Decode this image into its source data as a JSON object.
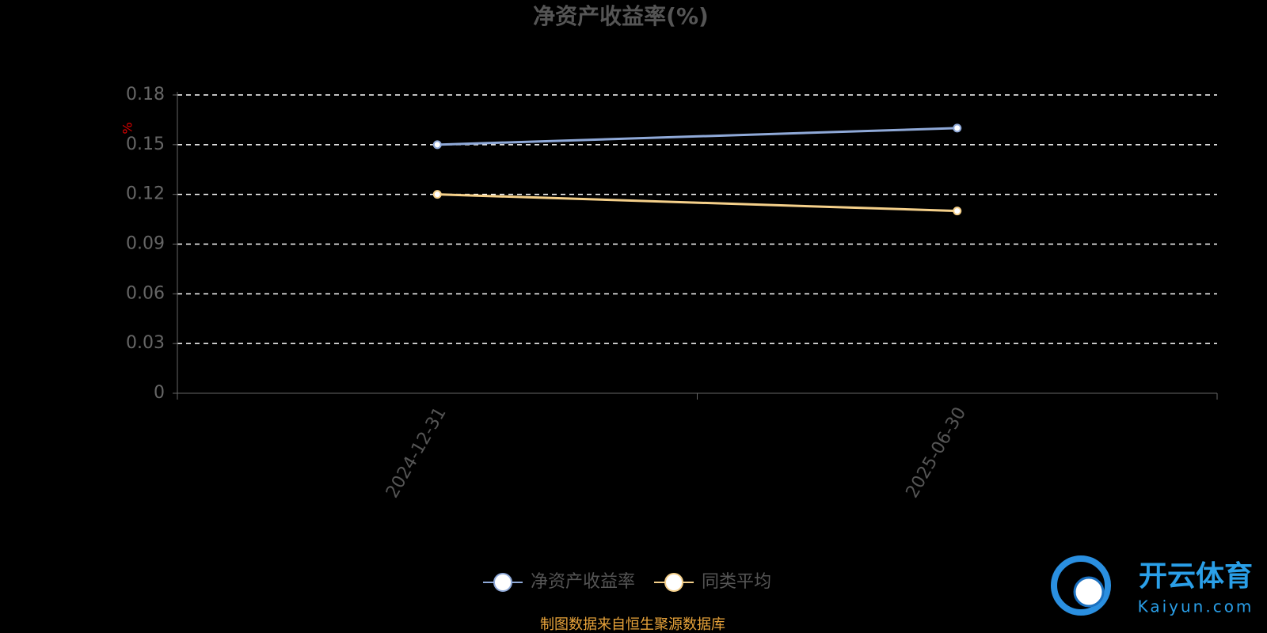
{
  "chart_data": {
    "type": "line",
    "title": "净资产收益率(%)",
    "y_label": "%",
    "categories": [
      "2024-12-31",
      "2025-06-30"
    ],
    "series": [
      {
        "name": "净资产收益率",
        "color": "#8fa9d8",
        "values": [
          0.15,
          0.16
        ]
      },
      {
        "name": "同类平均",
        "color": "#f5d08a",
        "values": [
          0.12,
          0.11
        ]
      }
    ],
    "ylim": [
      0,
      0.18
    ],
    "yticks": [
      0,
      0.03,
      0.06,
      0.09,
      0.12,
      0.15,
      0.18
    ],
    "grid": true,
    "legend": "bottom",
    "source": "制图数据来自恒生聚源数据库"
  },
  "watermark": {
    "brand": "开云体育",
    "site": "Kaiyun.com"
  }
}
